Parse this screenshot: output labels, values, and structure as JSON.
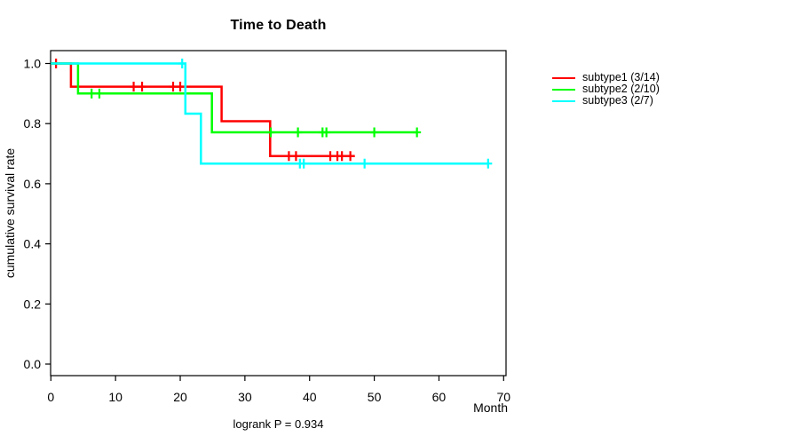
{
  "chart_data": {
    "type": "line",
    "style": "kaplan-meier-step",
    "title": "Time to Death",
    "xlabel": "Month",
    "ylabel": "cumulative survival rate",
    "annotation": "logrank P = 0.934",
    "xlim": [
      0,
      70
    ],
    "ylim": [
      0.0,
      1.0
    ],
    "xticks": [
      0,
      10,
      20,
      30,
      40,
      50,
      60,
      70
    ],
    "yticks": [
      0.0,
      0.2,
      0.4,
      0.6,
      0.8,
      1.0
    ],
    "ytick_labels": [
      "0.0",
      "0.2",
      "0.4",
      "0.6",
      "0.8",
      "1.0"
    ],
    "grid": false,
    "legend_position": "right-outside",
    "series": [
      {
        "key": "subtype1",
        "name": "subtype1 (3/14)",
        "color": "#ff0000",
        "steps": [
          [
            0,
            1.0
          ],
          [
            3.1,
            1.0
          ],
          [
            3.1,
            0.923
          ],
          [
            26.4,
            0.923
          ],
          [
            26.4,
            0.808
          ],
          [
            33.9,
            0.808
          ],
          [
            33.9,
            0.692
          ],
          [
            47.0,
            0.692
          ]
        ],
        "censor_marks": [
          [
            0.8,
            1.0
          ],
          [
            12.8,
            0.923
          ],
          [
            14.1,
            0.923
          ],
          [
            18.9,
            0.923
          ],
          [
            20.0,
            0.923
          ],
          [
            36.8,
            0.692
          ],
          [
            37.9,
            0.692
          ],
          [
            43.2,
            0.692
          ],
          [
            44.3,
            0.692
          ],
          [
            45.0,
            0.692
          ],
          [
            46.3,
            0.692
          ]
        ]
      },
      {
        "key": "subtype2",
        "name": "subtype2 (2/10)",
        "color": "#00ff00",
        "steps": [
          [
            0,
            1.0
          ],
          [
            4.2,
            1.0
          ],
          [
            4.2,
            0.9
          ],
          [
            24.9,
            0.9
          ],
          [
            24.9,
            0.771
          ],
          [
            56.6,
            0.771
          ]
        ],
        "censor_marks": [
          [
            6.3,
            0.9
          ],
          [
            7.5,
            0.9
          ],
          [
            34.0,
            0.771
          ],
          [
            38.2,
            0.771
          ],
          [
            42.0,
            0.771
          ],
          [
            42.6,
            0.771
          ],
          [
            50.0,
            0.771
          ],
          [
            56.6,
            0.771
          ]
        ]
      },
      {
        "key": "subtype3",
        "name": "subtype3 (2/7)",
        "color": "#00ffff",
        "steps": [
          [
            0,
            1.0
          ],
          [
            20.8,
            1.0
          ],
          [
            20.8,
            0.833
          ],
          [
            23.2,
            0.833
          ],
          [
            23.2,
            0.667
          ],
          [
            67.6,
            0.667
          ]
        ],
        "censor_marks": [
          [
            20.3,
            1.0
          ],
          [
            38.5,
            0.667
          ],
          [
            39.1,
            0.667
          ],
          [
            48.5,
            0.667
          ],
          [
            67.6,
            0.667
          ]
        ]
      }
    ]
  }
}
